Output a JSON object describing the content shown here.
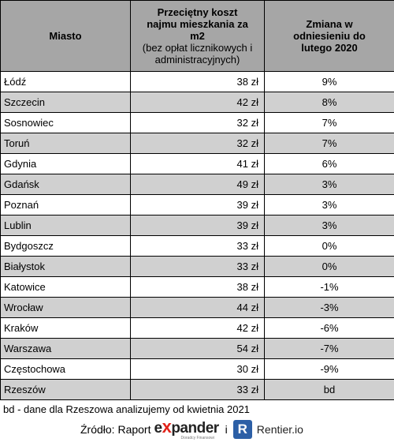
{
  "table": {
    "headers": {
      "city": "Miasto",
      "cost_main": "Przeciętny koszt najmu mieszkania za m2",
      "cost_sub": "(bez opłat licznikowych i administracyjnych)",
      "change": "Zmiana w odniesieniu do lutego 2020"
    },
    "rows": [
      {
        "city": "Łódź",
        "cost": "38 zł",
        "change": "9%"
      },
      {
        "city": "Szczecin",
        "cost": "42 zł",
        "change": "8%"
      },
      {
        "city": "Sosnowiec",
        "cost": "32 zł",
        "change": "7%"
      },
      {
        "city": "Toruń",
        "cost": "32 zł",
        "change": "7%"
      },
      {
        "city": "Gdynia",
        "cost": "41 zł",
        "change": "6%"
      },
      {
        "city": "Gdańsk",
        "cost": "49 zł",
        "change": "3%"
      },
      {
        "city": "Poznań",
        "cost": "39 zł",
        "change": "3%"
      },
      {
        "city": "Lublin",
        "cost": "39 zł",
        "change": "3%"
      },
      {
        "city": "Bydgoszcz",
        "cost": "33 zł",
        "change": "0%"
      },
      {
        "city": "Białystok",
        "cost": "33 zł",
        "change": "0%"
      },
      {
        "city": "Katowice",
        "cost": "38 zł",
        "change": "-1%"
      },
      {
        "city": "Wrocław",
        "cost": "44 zł",
        "change": "-3%"
      },
      {
        "city": "Kraków",
        "cost": "42 zł",
        "change": "-6%"
      },
      {
        "city": "Warszawa",
        "cost": "54 zł",
        "change": "-7%"
      },
      {
        "city": "Częstochowa",
        "cost": "30 zł",
        "change": "-9%"
      },
      {
        "city": "Rzeszów",
        "cost": "33 zł",
        "change": "bd"
      }
    ]
  },
  "footnote": "bd - dane dla Rzeszowa analizujemy od kwietnia 2021",
  "source": {
    "label": "Źródło: Raport",
    "expander_logo": {
      "pre": "e",
      "x": "x",
      "post": "pander",
      "tagline": "Doradcy Finansowi",
      "icon": "expander-logo"
    },
    "conjunction": "i",
    "rentier_mark": "R",
    "rentier_name": "Rentier.io"
  },
  "colors": {
    "header_bg": "#a6a6a6",
    "stripe_bg": "#d0d0d0",
    "expander_x": "#e2231a",
    "rentier_blue": "#2c5fa6"
  }
}
